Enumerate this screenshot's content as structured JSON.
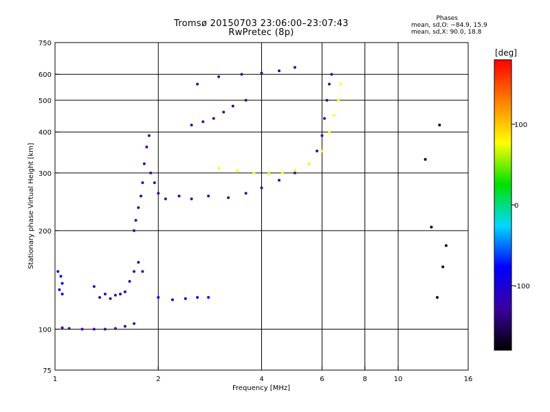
{
  "chart_data": {
    "type": "scatter",
    "title": "Tromsø 20150703 23:06:00–23:07:43",
    "subtitle": "RwPretec (8p)",
    "xlabel": "Frequency [MHz]",
    "ylabel": "Stationary phase Virtual Height [km]",
    "x_scale": "log",
    "y_scale": "log",
    "xlim": [
      1,
      16
    ],
    "ylim": [
      75,
      750
    ],
    "x_ticks": [
      1,
      2,
      4,
      6,
      8,
      10,
      16
    ],
    "y_ticks": [
      75,
      100,
      200,
      300,
      400,
      500,
      600,
      750
    ],
    "x_gridlines": [
      2,
      4,
      6,
      8,
      10
    ],
    "y_gridlines": [
      100,
      200,
      300,
      400,
      500,
      600
    ],
    "grid": true,
    "stats": {
      "heading": "Phases",
      "line1": "mean, sd,O: −84.9, 15.9",
      "line2": "mean, sd,X:  90.0, 18.8"
    },
    "colorbar": {
      "label": "[deg]",
      "range": [
        -180,
        180
      ],
      "ticks": [
        100,
        0,
        -100
      ],
      "colors": [
        "#000000",
        "#3a00a0",
        "#0000ff",
        "#00d8ff",
        "#00e000",
        "#ffff00",
        "#ff8000",
        "#ff0000"
      ]
    },
    "series": [
      {
        "points": [
          [
            1.05,
            101
          ],
          [
            1.1,
            100.5
          ],
          [
            1.2,
            100
          ],
          [
            1.3,
            100
          ],
          [
            1.4,
            100
          ],
          [
            1.5,
            100.5
          ],
          [
            1.6,
            102
          ],
          [
            1.7,
            104
          ]
        ],
        "phase": -90
      },
      {
        "points": [
          [
            1.02,
            150
          ],
          [
            1.04,
            145
          ],
          [
            1.05,
            138
          ],
          [
            1.03,
            132
          ],
          [
            1.05,
            128
          ]
        ],
        "phase": -70
      },
      {
        "points": [
          [
            1.3,
            135
          ],
          [
            1.35,
            125
          ],
          [
            1.4,
            128
          ],
          [
            1.45,
            124
          ],
          [
            1.5,
            127
          ],
          [
            1.55,
            128
          ],
          [
            1.6,
            130
          ],
          [
            1.65,
            140
          ],
          [
            1.7,
            150
          ],
          [
            1.75,
            160
          ],
          [
            1.8,
            150
          ]
        ],
        "phase": -110
      },
      {
        "points": [
          [
            1.7,
            200
          ],
          [
            1.72,
            215
          ],
          [
            1.75,
            235
          ],
          [
            1.78,
            255
          ],
          [
            1.8,
            280
          ],
          [
            1.82,
            320
          ],
          [
            1.85,
            360
          ],
          [
            1.88,
            390
          ],
          [
            1.9,
            300
          ],
          [
            1.95,
            280
          ],
          [
            2.0,
            260
          ],
          [
            2.1,
            250
          ],
          [
            2.3,
            255
          ],
          [
            2.5,
            250
          ],
          [
            2.8,
            255
          ],
          [
            3.2,
            252
          ],
          [
            3.6,
            260
          ],
          [
            4.0,
            270
          ],
          [
            4.5,
            285
          ],
          [
            5.0,
            300
          ],
          [
            5.5,
            320
          ],
          [
            5.8,
            350
          ],
          [
            6.0,
            390
          ],
          [
            6.1,
            440
          ],
          [
            6.2,
            500
          ],
          [
            6.3,
            560
          ],
          [
            6.4,
            600
          ]
        ],
        "phase": -110
      },
      {
        "points": [
          [
            3.0,
            310
          ],
          [
            3.4,
            305
          ],
          [
            3.8,
            300
          ],
          [
            4.2,
            298
          ],
          [
            4.6,
            300
          ],
          [
            5.0,
            305
          ],
          [
            5.5,
            320
          ],
          [
            6.0,
            350
          ],
          [
            6.3,
            400
          ],
          [
            6.5,
            450
          ],
          [
            6.7,
            500
          ],
          [
            6.8,
            560
          ]
        ],
        "phase": 100
      },
      {
        "points": [
          [
            2.5,
            420
          ],
          [
            2.7,
            430
          ],
          [
            2.9,
            440
          ],
          [
            3.1,
            460
          ],
          [
            3.3,
            480
          ],
          [
            3.6,
            500
          ],
          [
            2.6,
            560
          ],
          [
            3.0,
            590
          ],
          [
            3.5,
            600
          ],
          [
            4.0,
            605
          ],
          [
            4.5,
            615
          ],
          [
            5.0,
            630
          ]
        ],
        "phase": -95
      },
      {
        "points": [
          [
            2.0,
            125
          ],
          [
            2.2,
            123
          ],
          [
            2.4,
            124
          ],
          [
            2.6,
            125
          ],
          [
            2.8,
            125
          ]
        ],
        "phase": -60
      },
      {
        "points": [
          [
            12.0,
            330
          ],
          [
            12.5,
            205
          ],
          [
            13.0,
            125
          ],
          [
            13.5,
            155
          ],
          [
            13.2,
            420
          ],
          [
            13.8,
            180
          ]
        ],
        "phase": -130
      }
    ]
  }
}
